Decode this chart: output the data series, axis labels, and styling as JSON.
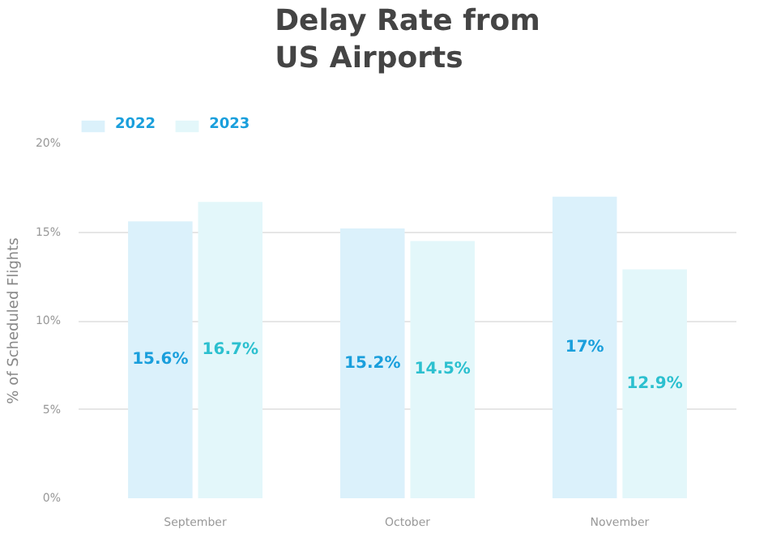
{
  "chart_data": {
    "type": "bar",
    "title": "Delay Rate from\nUS Airports",
    "ylabel": "% of Scheduled Flights",
    "categories": [
      "September",
      "October",
      "November"
    ],
    "series": [
      {
        "name": "2022",
        "color": "#dbf1fb",
        "values": [
          15.6,
          15.2,
          17
        ]
      },
      {
        "name": "2023",
        "color": "#e3f7fa",
        "values": [
          16.7,
          14.5,
          12.9
        ]
      }
    ],
    "value_labels": [
      [
        "15.6%",
        "15.2%",
        "17%"
      ],
      [
        "16.7%",
        "14.5%",
        "12.9%"
      ]
    ],
    "ylim": [
      0,
      20
    ],
    "yticks": [
      {
        "value": 0,
        "label": "0%"
      },
      {
        "value": 5,
        "label": "5%"
      },
      {
        "value": 10,
        "label": "10%"
      },
      {
        "value": 15,
        "label": "15%"
      },
      {
        "value": 20,
        "label": "20%"
      }
    ],
    "grid": "y",
    "legend": "top left"
  }
}
